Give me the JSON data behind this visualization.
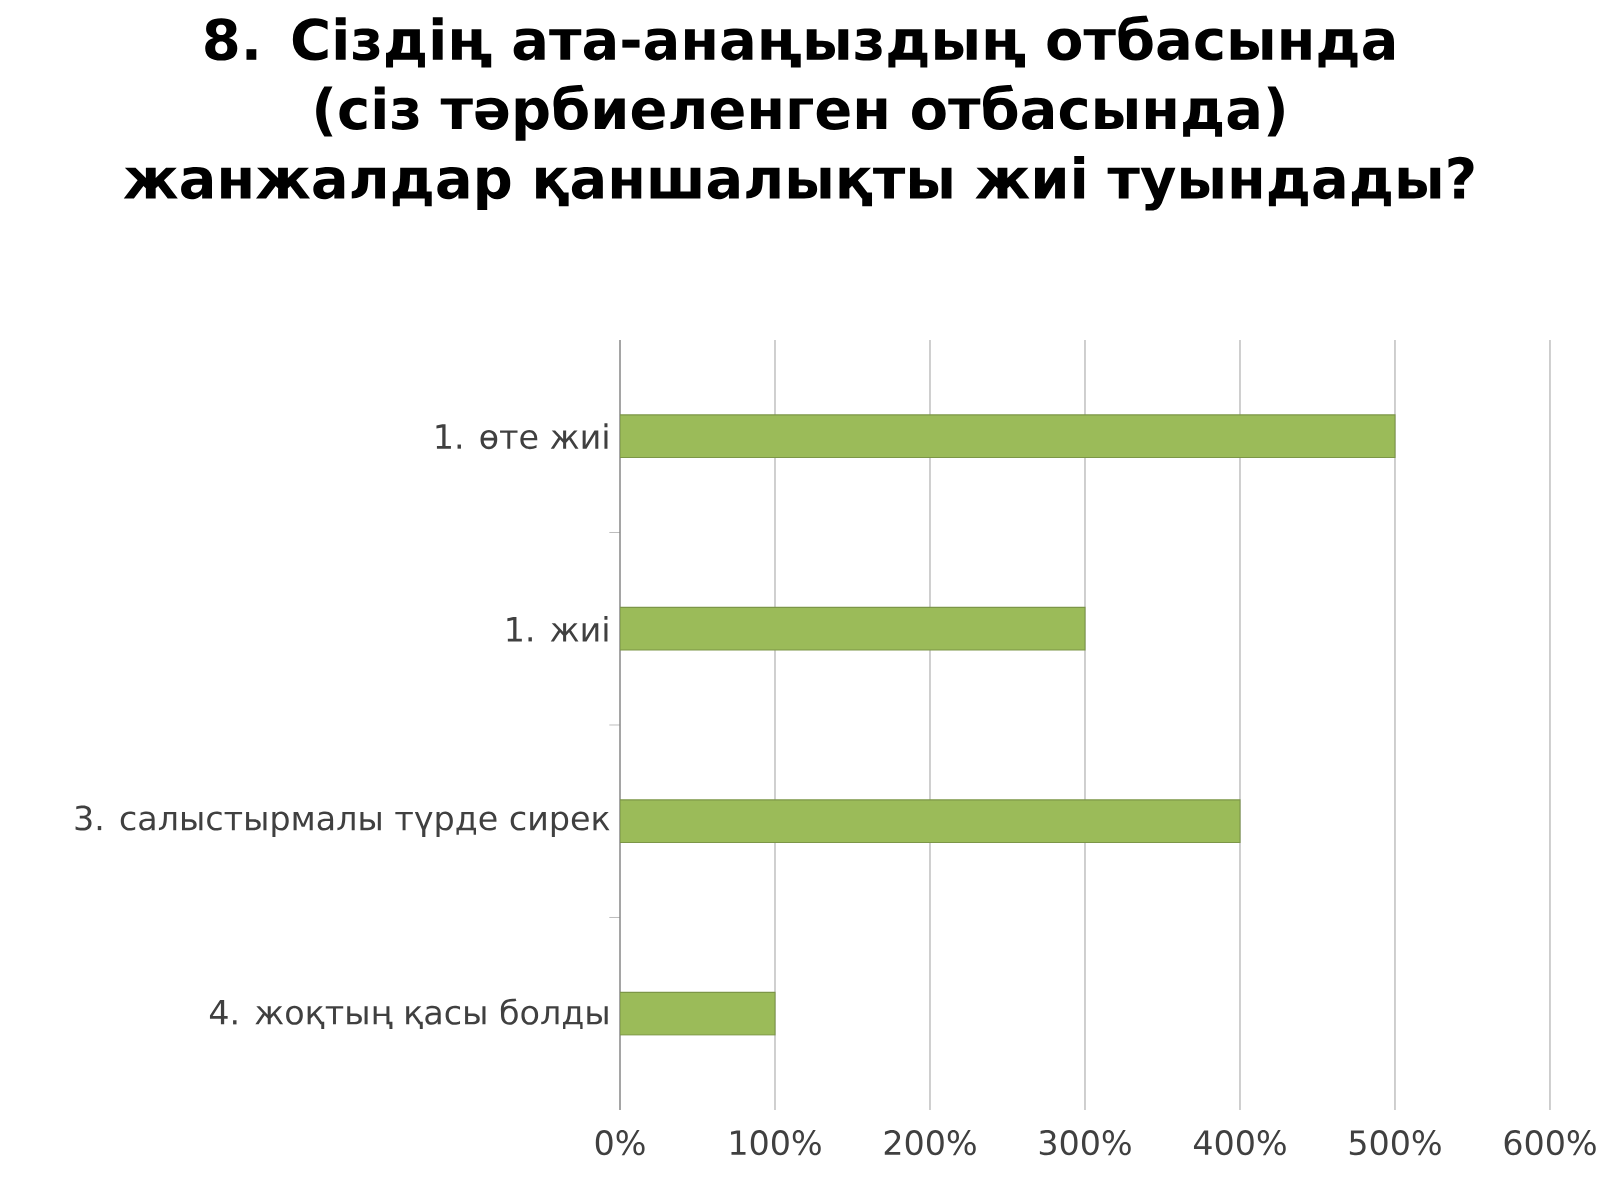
{
  "chart_data": {
    "type": "bar",
    "orientation": "horizontal",
    "title": "8. Сіздің ата-анаңыздың отбасында (сіз тәрбиеленген отбасында) жанжалдар қаншалықты жиі туындады?",
    "categories": [
      "1. өте жиі",
      "1. жиі",
      "3. салыстырмалы түрде сирек",
      "4. жоқтың қасы болды"
    ],
    "values": [
      500,
      300,
      400,
      100
    ],
    "color": "#9bbb59",
    "xlim": [
      0,
      600
    ],
    "xticks": [
      {
        "value": 0,
        "label": "0%"
      },
      {
        "value": 100,
        "label": "100%"
      },
      {
        "value": 200,
        "label": "200%"
      },
      {
        "value": 300,
        "label": "300%"
      },
      {
        "value": 400,
        "label": "400%"
      },
      {
        "value": 500,
        "label": "500%"
      },
      {
        "value": 600,
        "label": "600%"
      }
    ],
    "grid": "x"
  }
}
